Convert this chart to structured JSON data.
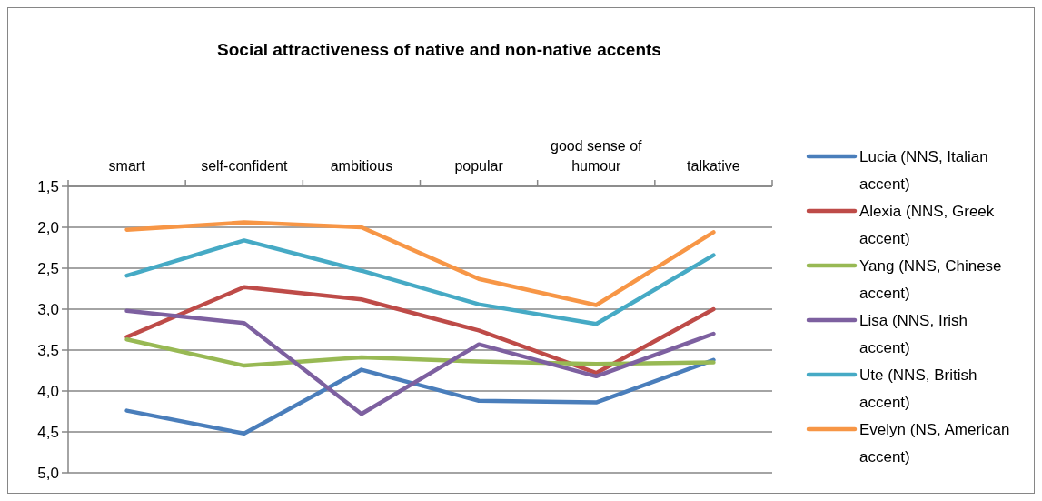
{
  "chart_data": {
    "type": "line",
    "title": "Social attractiveness of native and non-native accents",
    "categories": [
      "smart",
      "self-confident",
      "ambitious",
      "popular",
      "good sense of humour",
      "talkative"
    ],
    "series": [
      {
        "name": "Lucia (NNS, Italian accent)",
        "color": "#4a7ebb",
        "values": [
          4.24,
          4.52,
          3.74,
          4.12,
          4.14,
          3.62
        ]
      },
      {
        "name": "Alexia  (NNS, Greek accent)",
        "color": "#be4b48",
        "values": [
          3.34,
          2.73,
          2.88,
          3.26,
          3.78,
          3.0
        ]
      },
      {
        "name": "Yang (NNS, Chinese accent)",
        "color": "#98b954",
        "values": [
          3.37,
          3.69,
          3.59,
          3.64,
          3.67,
          3.65
        ]
      },
      {
        "name": "Lisa (NNS, Irish accent)",
        "color": "#7d60a0",
        "values": [
          3.02,
          3.17,
          4.28,
          3.43,
          3.82,
          3.3
        ]
      },
      {
        "name": "Ute (NNS, British accent)",
        "color": "#46aac5",
        "values": [
          2.59,
          2.16,
          2.53,
          2.94,
          3.18,
          2.34
        ]
      },
      {
        "name": "Evelyn (NS, American accent)",
        "color": "#f79646",
        "values": [
          2.03,
          1.94,
          2.0,
          2.63,
          2.95,
          2.06
        ]
      }
    ],
    "ylim": [
      5.0,
      1.5
    ],
    "yticks": [
      {
        "value": 1.5,
        "label": "1,5"
      },
      {
        "value": 2.0,
        "label": "2,0"
      },
      {
        "value": 2.5,
        "label": "2,5"
      },
      {
        "value": 3.0,
        "label": "3,0"
      },
      {
        "value": 3.5,
        "label": "3,5"
      },
      {
        "value": 4.0,
        "label": "4,0"
      },
      {
        "value": 4.5,
        "label": "4,5"
      },
      {
        "value": 5.0,
        "label": "5,0"
      }
    ],
    "grid": "y",
    "legend": "right",
    "marker": "none",
    "line_style": "solid"
  }
}
